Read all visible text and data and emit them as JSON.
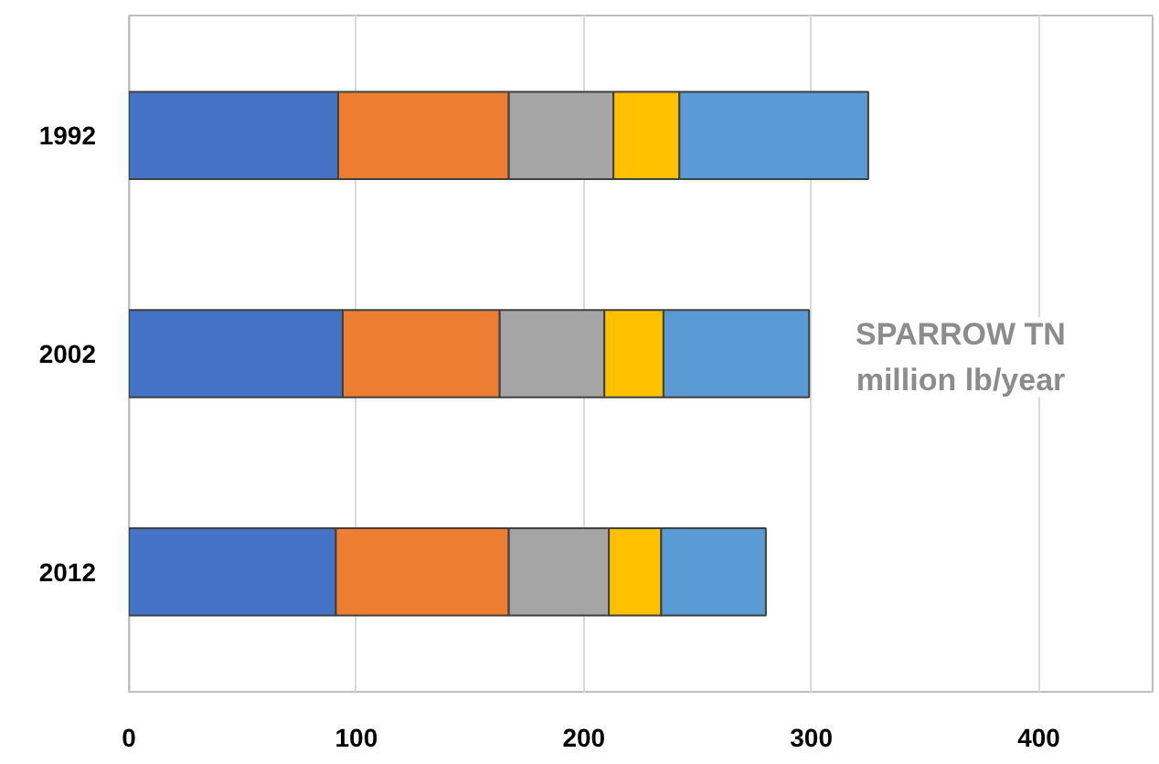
{
  "chart_data": {
    "type": "bar",
    "orientation": "horizontal",
    "stacked": true,
    "categories": [
      "1992",
      "2002",
      "2012"
    ],
    "series": [
      {
        "color": "#4472c4",
        "values": [
          92,
          94,
          91
        ]
      },
      {
        "color": "#ed7d31",
        "values": [
          75,
          69,
          76
        ]
      },
      {
        "color": "#a5a5a5",
        "values": [
          46,
          46,
          44
        ]
      },
      {
        "color": "#ffc000",
        "values": [
          29,
          26,
          23
        ]
      },
      {
        "color": "#5b9bd5",
        "values": [
          83,
          64,
          46
        ]
      }
    ],
    "xlim": [
      0,
      450
    ],
    "xticks": [
      0,
      100,
      200,
      300,
      400
    ],
    "grid": "x",
    "annotations": [
      "SPARROW TN\nmillion lb/year"
    ]
  }
}
